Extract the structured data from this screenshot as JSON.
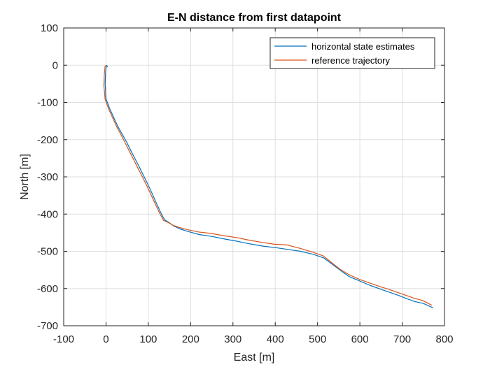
{
  "chart_data": {
    "type": "line",
    "title": "E-N distance from first datapoint",
    "xlabel": "East [m]",
    "ylabel": "North [m]",
    "xlim": [
      -100,
      800
    ],
    "ylim": [
      -700,
      100
    ],
    "xticks": [
      -100,
      0,
      100,
      200,
      300,
      400,
      500,
      600,
      700,
      800
    ],
    "yticks": [
      -700,
      -600,
      -500,
      -400,
      -300,
      -200,
      -100,
      0,
      100
    ],
    "grid": true,
    "legend_position": "top-right",
    "series": [
      {
        "name": "horizontal state estimates",
        "color": "#0072BD",
        "x": [
          4,
          1,
          -1,
          -2,
          0,
          8,
          18,
          28,
          38,
          48,
          58,
          68,
          78,
          88,
          98,
          108,
          118,
          128,
          138,
          148,
          160,
          175,
          195,
          220,
          250,
          280,
          310,
          340,
          370,
          400,
          430,
          460,
          490,
          515,
          535,
          555,
          575,
          600,
          625,
          650,
          670,
          690,
          710,
          730,
          750,
          773
        ],
        "y": [
          -5,
          0,
          -20,
          -50,
          -90,
          -115,
          -140,
          -165,
          -185,
          -205,
          -228,
          -250,
          -272,
          -295,
          -318,
          -342,
          -368,
          -393,
          -415,
          -422,
          -432,
          -440,
          -447,
          -455,
          -460,
          -467,
          -473,
          -480,
          -486,
          -490,
          -495,
          -500,
          -508,
          -518,
          -535,
          -552,
          -568,
          -580,
          -592,
          -602,
          -610,
          -618,
          -627,
          -635,
          -640,
          -652
        ]
      },
      {
        "name": "reference trajectory",
        "color": "#D95319",
        "x": [
          2,
          -2,
          -4,
          -5,
          -2,
          6,
          16,
          26,
          36,
          46,
          56,
          66,
          76,
          86,
          96,
          106,
          116,
          126,
          136,
          146,
          158,
          173,
          193,
          218,
          248,
          278,
          308,
          338,
          368,
          398,
          428,
          458,
          488,
          513,
          533,
          553,
          573,
          598,
          623,
          648,
          668,
          688,
          708,
          728,
          748,
          770
        ],
        "y": [
          -3,
          -2,
          -25,
          -55,
          -92,
          -117,
          -142,
          -167,
          -188,
          -210,
          -233,
          -255,
          -278,
          -300,
          -323,
          -347,
          -372,
          -396,
          -417,
          -422,
          -430,
          -436,
          -442,
          -448,
          -452,
          -458,
          -463,
          -470,
          -476,
          -481,
          -483,
          -492,
          -502,
          -512,
          -530,
          -548,
          -562,
          -575,
          -585,
          -595,
          -602,
          -610,
          -618,
          -626,
          -632,
          -645
        ]
      }
    ]
  }
}
